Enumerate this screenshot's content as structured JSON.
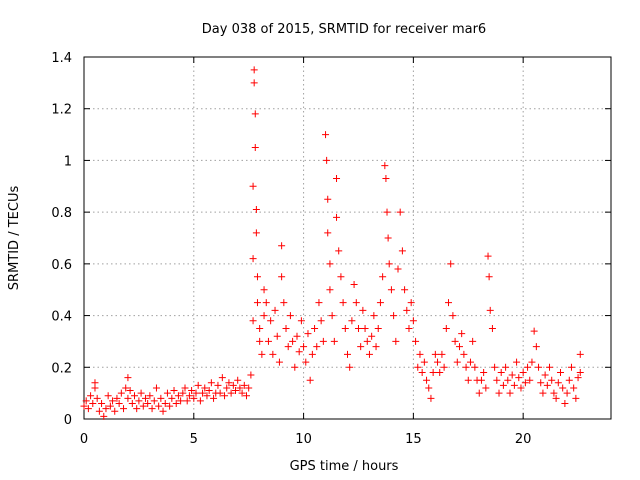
{
  "chart_data": {
    "type": "scatter",
    "title": "Day 038 of 2015, SRMTID for receiver mar6",
    "xlabel": "GPS time / hours",
    "ylabel": "SRMTID / TECUs",
    "xlim": [
      0,
      24
    ],
    "ylim": [
      0,
      1.4
    ],
    "xticks": [
      0,
      5,
      10,
      15,
      20
    ],
    "xtick_labels": [
      "0",
      "5",
      "10",
      "15",
      "20"
    ],
    "yticks": [
      0,
      0.2,
      0.4,
      0.6,
      0.8,
      1.0,
      1.2,
      1.4
    ],
    "ytick_labels": [
      "0",
      "0.2",
      "0.4",
      "0.6",
      "0.8",
      "1",
      "1.2",
      "1.4"
    ],
    "grid": true,
    "marker": "plus",
    "series": [
      {
        "name": "mar6",
        "color": "#ff0000",
        "points": [
          [
            0.0,
            0.05
          ],
          [
            0.1,
            0.07
          ],
          [
            0.2,
            0.04
          ],
          [
            0.3,
            0.09
          ],
          [
            0.4,
            0.06
          ],
          [
            0.5,
            0.12
          ],
          [
            0.5,
            0.14
          ],
          [
            0.6,
            0.08
          ],
          [
            0.7,
            0.03
          ],
          [
            0.8,
            0.06
          ],
          [
            0.9,
            0.01
          ],
          [
            1.0,
            0.04
          ],
          [
            1.1,
            0.09
          ],
          [
            1.2,
            0.05
          ],
          [
            1.3,
            0.07
          ],
          [
            1.4,
            0.03
          ],
          [
            1.5,
            0.08
          ],
          [
            1.6,
            0.06
          ],
          [
            1.7,
            0.1
          ],
          [
            1.8,
            0.04
          ],
          [
            1.9,
            0.12
          ],
          [
            2.0,
            0.16
          ],
          [
            2.0,
            0.08
          ],
          [
            2.1,
            0.11
          ],
          [
            2.2,
            0.06
          ],
          [
            2.3,
            0.09
          ],
          [
            2.4,
            0.04
          ],
          [
            2.5,
            0.07
          ],
          [
            2.6,
            0.1
          ],
          [
            2.7,
            0.05
          ],
          [
            2.8,
            0.08
          ],
          [
            2.9,
            0.06
          ],
          [
            3.0,
            0.09
          ],
          [
            3.1,
            0.04
          ],
          [
            3.2,
            0.07
          ],
          [
            3.3,
            0.12
          ],
          [
            3.4,
            0.05
          ],
          [
            3.5,
            0.08
          ],
          [
            3.6,
            0.03
          ],
          [
            3.7,
            0.06
          ],
          [
            3.8,
            0.1
          ],
          [
            3.9,
            0.05
          ],
          [
            4.0,
            0.08
          ],
          [
            4.1,
            0.11
          ],
          [
            4.2,
            0.06
          ],
          [
            4.3,
            0.09
          ],
          [
            4.4,
            0.07
          ],
          [
            4.5,
            0.1
          ],
          [
            4.6,
            0.12
          ],
          [
            4.7,
            0.07
          ],
          [
            4.8,
            0.09
          ],
          [
            4.9,
            0.11
          ],
          [
            5.0,
            0.08
          ],
          [
            5.1,
            0.1
          ],
          [
            5.2,
            0.13
          ],
          [
            5.3,
            0.07
          ],
          [
            5.4,
            0.1
          ],
          [
            5.5,
            0.12
          ],
          [
            5.6,
            0.09
          ],
          [
            5.7,
            0.11
          ],
          [
            5.8,
            0.14
          ],
          [
            5.9,
            0.08
          ],
          [
            6.0,
            0.1
          ],
          [
            6.1,
            0.13
          ],
          [
            6.2,
            0.1
          ],
          [
            6.3,
            0.16
          ],
          [
            6.4,
            0.09
          ],
          [
            6.5,
            0.12
          ],
          [
            6.6,
            0.14
          ],
          [
            6.7,
            0.1
          ],
          [
            6.8,
            0.13
          ],
          [
            6.9,
            0.11
          ],
          [
            7.0,
            0.15
          ],
          [
            7.1,
            0.12
          ],
          [
            7.2,
            0.1
          ],
          [
            7.3,
            0.13
          ],
          [
            7.4,
            0.09
          ],
          [
            7.5,
            0.12
          ],
          [
            7.6,
            0.17
          ],
          [
            7.7,
            0.38
          ],
          [
            7.7,
            0.62
          ],
          [
            7.7,
            0.9
          ],
          [
            7.75,
            1.3
          ],
          [
            7.75,
            1.35
          ],
          [
            7.8,
            1.18
          ],
          [
            7.8,
            1.05
          ],
          [
            7.85,
            0.81
          ],
          [
            7.85,
            0.72
          ],
          [
            7.9,
            0.55
          ],
          [
            7.9,
            0.45
          ],
          [
            8.0,
            0.35
          ],
          [
            8.0,
            0.3
          ],
          [
            8.1,
            0.25
          ],
          [
            8.2,
            0.4
          ],
          [
            8.2,
            0.5
          ],
          [
            8.3,
            0.45
          ],
          [
            8.4,
            0.3
          ],
          [
            8.5,
            0.38
          ],
          [
            8.6,
            0.25
          ],
          [
            8.7,
            0.42
          ],
          [
            8.8,
            0.32
          ],
          [
            8.9,
            0.22
          ],
          [
            9.0,
            0.67
          ],
          [
            9.0,
            0.55
          ],
          [
            9.1,
            0.45
          ],
          [
            9.2,
            0.35
          ],
          [
            9.3,
            0.28
          ],
          [
            9.4,
            0.4
          ],
          [
            9.5,
            0.3
          ],
          [
            9.6,
            0.2
          ],
          [
            9.7,
            0.32
          ],
          [
            9.8,
            0.26
          ],
          [
            9.9,
            0.38
          ],
          [
            10.0,
            0.28
          ],
          [
            10.1,
            0.22
          ],
          [
            10.2,
            0.33
          ],
          [
            10.3,
            0.15
          ],
          [
            10.4,
            0.25
          ],
          [
            10.5,
            0.35
          ],
          [
            10.6,
            0.28
          ],
          [
            10.7,
            0.45
          ],
          [
            10.8,
            0.38
          ],
          [
            10.9,
            0.3
          ],
          [
            11.0,
            1.1
          ],
          [
            11.05,
            1.0
          ],
          [
            11.1,
            0.85
          ],
          [
            11.1,
            0.72
          ],
          [
            11.2,
            0.6
          ],
          [
            11.2,
            0.5
          ],
          [
            11.3,
            0.4
          ],
          [
            11.4,
            0.3
          ],
          [
            11.5,
            0.93
          ],
          [
            11.5,
            0.78
          ],
          [
            11.6,
            0.65
          ],
          [
            11.7,
            0.55
          ],
          [
            11.8,
            0.45
          ],
          [
            11.9,
            0.35
          ],
          [
            12.0,
            0.25
          ],
          [
            12.1,
            0.2
          ],
          [
            12.2,
            0.38
          ],
          [
            12.3,
            0.52
          ],
          [
            12.4,
            0.45
          ],
          [
            12.5,
            0.35
          ],
          [
            12.6,
            0.28
          ],
          [
            12.7,
            0.42
          ],
          [
            12.8,
            0.35
          ],
          [
            12.9,
            0.3
          ],
          [
            13.0,
            0.25
          ],
          [
            13.1,
            0.32
          ],
          [
            13.2,
            0.4
          ],
          [
            13.3,
            0.28
          ],
          [
            13.4,
            0.35
          ],
          [
            13.5,
            0.45
          ],
          [
            13.6,
            0.55
          ],
          [
            13.7,
            0.98
          ],
          [
            13.75,
            0.93
          ],
          [
            13.8,
            0.8
          ],
          [
            13.85,
            0.7
          ],
          [
            13.9,
            0.6
          ],
          [
            14.0,
            0.5
          ],
          [
            14.1,
            0.4
          ],
          [
            14.2,
            0.3
          ],
          [
            14.3,
            0.58
          ],
          [
            14.4,
            0.8
          ],
          [
            14.5,
            0.65
          ],
          [
            14.6,
            0.5
          ],
          [
            14.7,
            0.42
          ],
          [
            14.8,
            0.35
          ],
          [
            14.9,
            0.45
          ],
          [
            15.0,
            0.38
          ],
          [
            15.1,
            0.3
          ],
          [
            15.2,
            0.2
          ],
          [
            15.3,
            0.25
          ],
          [
            15.4,
            0.18
          ],
          [
            15.5,
            0.22
          ],
          [
            15.6,
            0.15
          ],
          [
            15.7,
            0.12
          ],
          [
            15.8,
            0.08
          ],
          [
            15.9,
            0.18
          ],
          [
            16.0,
            0.25
          ],
          [
            16.1,
            0.22
          ],
          [
            16.2,
            0.18
          ],
          [
            16.3,
            0.25
          ],
          [
            16.4,
            0.2
          ],
          [
            16.5,
            0.35
          ],
          [
            16.6,
            0.45
          ],
          [
            16.7,
            0.6
          ],
          [
            16.8,
            0.4
          ],
          [
            16.9,
            0.3
          ],
          [
            17.0,
            0.22
          ],
          [
            17.1,
            0.28
          ],
          [
            17.2,
            0.33
          ],
          [
            17.3,
            0.25
          ],
          [
            17.4,
            0.2
          ],
          [
            17.5,
            0.15
          ],
          [
            17.6,
            0.22
          ],
          [
            17.7,
            0.3
          ],
          [
            17.8,
            0.2
          ],
          [
            17.9,
            0.15
          ],
          [
            18.0,
            0.1
          ],
          [
            18.1,
            0.15
          ],
          [
            18.2,
            0.18
          ],
          [
            18.3,
            0.12
          ],
          [
            18.4,
            0.63
          ],
          [
            18.45,
            0.55
          ],
          [
            18.5,
            0.42
          ],
          [
            18.6,
            0.35
          ],
          [
            18.7,
            0.2
          ],
          [
            18.8,
            0.15
          ],
          [
            18.9,
            0.1
          ],
          [
            19.0,
            0.18
          ],
          [
            19.1,
            0.13
          ],
          [
            19.2,
            0.2
          ],
          [
            19.3,
            0.15
          ],
          [
            19.4,
            0.1
          ],
          [
            19.5,
            0.17
          ],
          [
            19.6,
            0.13
          ],
          [
            19.7,
            0.22
          ],
          [
            19.8,
            0.16
          ],
          [
            19.9,
            0.12
          ],
          [
            20.0,
            0.18
          ],
          [
            20.1,
            0.14
          ],
          [
            20.2,
            0.2
          ],
          [
            20.3,
            0.15
          ],
          [
            20.4,
            0.22
          ],
          [
            20.5,
            0.34
          ],
          [
            20.6,
            0.28
          ],
          [
            20.7,
            0.2
          ],
          [
            20.8,
            0.14
          ],
          [
            20.9,
            0.1
          ],
          [
            21.0,
            0.17
          ],
          [
            21.1,
            0.13
          ],
          [
            21.2,
            0.2
          ],
          [
            21.3,
            0.15
          ],
          [
            21.4,
            0.1
          ],
          [
            21.5,
            0.08
          ],
          [
            21.6,
            0.14
          ],
          [
            21.7,
            0.18
          ],
          [
            21.8,
            0.12
          ],
          [
            21.9,
            0.06
          ],
          [
            22.0,
            0.1
          ],
          [
            22.1,
            0.15
          ],
          [
            22.2,
            0.2
          ],
          [
            22.3,
            0.12
          ],
          [
            22.4,
            0.08
          ],
          [
            22.5,
            0.16
          ],
          [
            22.6,
            0.25
          ],
          [
            22.6,
            0.18
          ]
        ]
      }
    ]
  }
}
